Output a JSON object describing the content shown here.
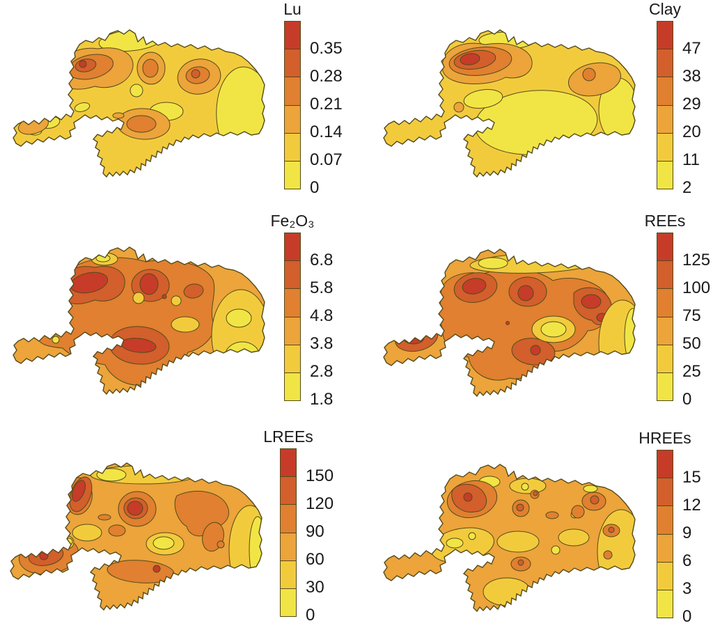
{
  "figure": {
    "background": "#ffffff",
    "description": "Six filled-contour geochemical maps of the same state-shaped region, each with a vertical 6-class color scale legend"
  },
  "palette": {
    "levels_low_to_high": [
      "#f1e545",
      "#f2cb3d",
      "#ecA43b",
      "#e08030",
      "#d25f2c",
      "#c63c29"
    ],
    "contour_line": "#544a1a",
    "text_color": "#1a1a1a"
  },
  "panels": [
    {
      "id": "lu",
      "title": "Lu",
      "scale_ticks_top_to_bottom": [
        "0.35",
        "0.28",
        "0.21",
        "0.14",
        "0.07",
        "0"
      ]
    },
    {
      "id": "clay",
      "title": "Clay",
      "scale_ticks_top_to_bottom": [
        "47",
        "38",
        "29",
        "20",
        "11",
        "2"
      ]
    },
    {
      "id": "fe2o3",
      "title": "Fe₂O₃",
      "scale_ticks_top_to_bottom": [
        "6.8",
        "5.8",
        "4.8",
        "3.8",
        "2.8",
        "1.8"
      ]
    },
    {
      "id": "rees",
      "title": "REEs",
      "scale_ticks_top_to_bottom": [
        "125",
        "100",
        "75",
        "50",
        "25",
        "0"
      ]
    },
    {
      "id": "lrees",
      "title": "LREEs",
      "scale_ticks_top_to_bottom": [
        "150",
        "120",
        "90",
        "60",
        "30",
        "0"
      ]
    },
    {
      "id": "hrees",
      "title": "HREEs",
      "scale_ticks_top_to_bottom": [
        "15",
        "12",
        "9",
        "6",
        "3",
        "0"
      ]
    }
  ],
  "chart_data": [
    {
      "type": "heatmap",
      "subtype": "filled_contour_map",
      "title": "Lu",
      "legend_ticks_top_to_bottom": [
        0.35,
        0.28,
        0.21,
        0.14,
        0.07,
        0
      ],
      "scale_min": 0,
      "class_interval": 0.07,
      "n_color_classes": 6,
      "high_value_areas": [
        "northwest",
        "north-center",
        "east-center",
        "central-south"
      ],
      "low_value_areas": [
        "east third",
        "north coastal strip",
        "southwest arm"
      ]
    },
    {
      "type": "heatmap",
      "subtype": "filled_contour_map",
      "title": "Clay",
      "legend_ticks_top_to_bottom": [
        47,
        38,
        29,
        20,
        11,
        2
      ],
      "scale_min": 2,
      "class_interval": 9,
      "n_color_classes": 6,
      "high_value_areas": [
        "northwest hotspot",
        "east-center moderate zone"
      ],
      "low_value_areas": [
        "south-center",
        "east",
        "southwest arm"
      ]
    },
    {
      "type": "heatmap",
      "subtype": "filled_contour_map",
      "title": "Fe₂O₃",
      "legend_ticks_top_to_bottom": [
        6.8,
        5.8,
        4.8,
        3.8,
        2.8,
        1.8
      ],
      "scale_min": 1.8,
      "class_interval": 1.0,
      "n_color_classes": 6,
      "high_value_areas": [
        "northwest",
        "north-center",
        "central-south lobe"
      ],
      "low_value_areas": [
        "east third",
        "small scattered pockets"
      ]
    },
    {
      "type": "heatmap",
      "subtype": "filled_contour_map",
      "title": "REEs",
      "legend_ticks_top_to_bottom": [
        125,
        100,
        75,
        50,
        25,
        0
      ],
      "scale_min": 0,
      "class_interval": 25,
      "n_color_classes": 6,
      "high_value_areas": [
        "northwest",
        "north-center",
        "northeast",
        "west tip",
        "central-south"
      ],
      "low_value_areas": [
        "north coastal strip",
        "east edge",
        "center-right pocket"
      ]
    },
    {
      "type": "heatmap",
      "subtype": "filled_contour_map",
      "title": "LREEs",
      "legend_ticks_top_to_bottom": [
        150,
        120,
        90,
        60,
        30,
        0
      ],
      "scale_min": 0,
      "class_interval": 30,
      "n_color_classes": 6,
      "high_value_areas": [
        "northwest edge",
        "north-center",
        "west blob",
        "south streak",
        "east hook band"
      ],
      "low_value_areas": [
        "north coastal strip",
        "east strip",
        "center pockets"
      ]
    },
    {
      "type": "heatmap",
      "subtype": "filled_contour_map",
      "title": "HREEs",
      "legend_ticks_top_to_bottom": [
        15,
        12,
        9,
        6,
        3,
        0
      ],
      "scale_min": 0,
      "class_interval": 3,
      "n_color_classes": 6,
      "high_value_areas": [
        "northwest blob",
        "scattered small spots across north and east-center"
      ],
      "low_value_areas": [
        "east edge",
        "west-center pockets",
        "south lobe"
      ]
    }
  ]
}
